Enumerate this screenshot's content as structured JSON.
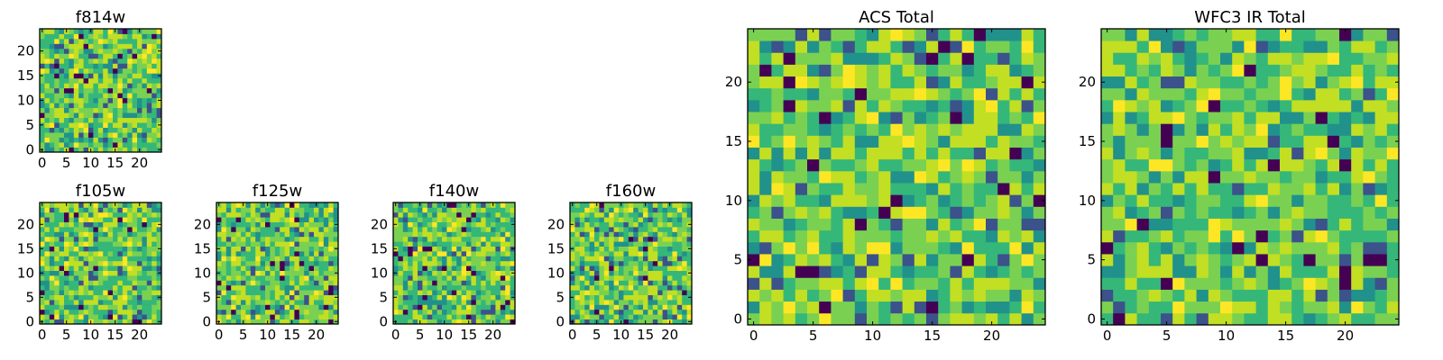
{
  "figure": {
    "layout_note": "",
    "colormap": [
      "#440154",
      "#3b528b",
      "#21918c",
      "#35b779",
      "#7ad151",
      "#c2df23",
      "#fde725"
    ]
  },
  "chart_data": [
    {
      "type": "heatmap",
      "title": "f814w",
      "grid_size": 25,
      "xticks": [
        0,
        5,
        10,
        15,
        20
      ],
      "yticks": [
        0,
        5,
        10,
        15,
        20
      ],
      "xlim": [
        -0.5,
        24.5
      ],
      "ylim": [
        -0.5,
        24.5
      ],
      "origin": "lower",
      "seed": 11
    },
    {
      "type": "heatmap",
      "title": "f105w",
      "grid_size": 25,
      "xticks": [
        0,
        5,
        10,
        15,
        20
      ],
      "yticks": [
        0,
        5,
        10,
        15,
        20
      ],
      "xlim": [
        -0.5,
        24.5
      ],
      "ylim": [
        -0.5,
        24.5
      ],
      "origin": "lower",
      "seed": 23
    },
    {
      "type": "heatmap",
      "title": "f125w",
      "grid_size": 25,
      "xticks": [
        0,
        5,
        10,
        15,
        20
      ],
      "yticks": [
        0,
        5,
        10,
        15,
        20
      ],
      "xlim": [
        -0.5,
        24.5
      ],
      "ylim": [
        -0.5,
        24.5
      ],
      "origin": "lower",
      "seed": 37
    },
    {
      "type": "heatmap",
      "title": "f140w",
      "grid_size": 25,
      "xticks": [
        0,
        5,
        10,
        15,
        20
      ],
      "yticks": [
        0,
        5,
        10,
        15,
        20
      ],
      "xlim": [
        -0.5,
        24.5
      ],
      "ylim": [
        -0.5,
        24.5
      ],
      "origin": "lower",
      "seed": 41
    },
    {
      "type": "heatmap",
      "title": "f160w",
      "grid_size": 25,
      "xticks": [
        0,
        5,
        10,
        15,
        20
      ],
      "yticks": [
        0,
        5,
        10,
        15,
        20
      ],
      "xlim": [
        -0.5,
        24.5
      ],
      "ylim": [
        -0.5,
        24.5
      ],
      "origin": "lower",
      "seed": 53
    },
    {
      "type": "heatmap",
      "title": "ACS Total",
      "grid_size": 25,
      "xticks": [
        0,
        5,
        10,
        15,
        20
      ],
      "yticks": [
        0,
        5,
        10,
        15,
        20
      ],
      "xlim": [
        -0.5,
        24.5
      ],
      "ylim": [
        -0.5,
        24.5
      ],
      "origin": "lower",
      "seed": 67
    },
    {
      "type": "heatmap",
      "title": "WFC3 IR Total",
      "grid_size": 25,
      "xticks": [
        0,
        5,
        10,
        15,
        20
      ],
      "yticks": [
        0,
        5,
        10,
        15,
        20
      ],
      "xlim": [
        -0.5,
        24.5
      ],
      "ylim": [
        -0.5,
        24.5
      ],
      "origin": "lower",
      "seed": 79
    }
  ]
}
